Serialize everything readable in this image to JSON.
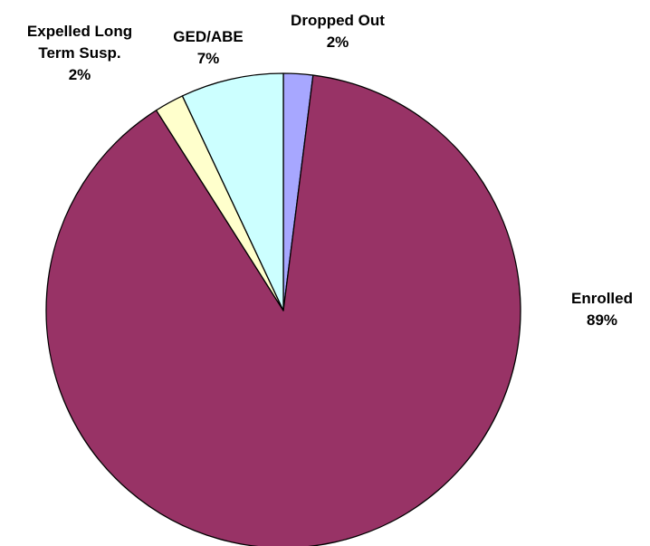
{
  "chart_data": {
    "type": "pie",
    "title": "",
    "start_angle_deg": 0,
    "direction": "clockwise",
    "slices": [
      {
        "name": "Dropped Out",
        "value": 2,
        "label_lines": [
          "Dropped Out"
        ],
        "percent_label": "2%",
        "color": "#A7A7FF"
      },
      {
        "name": "Enrolled",
        "value": 89,
        "label_lines": [
          "Enrolled"
        ],
        "percent_label": "89%",
        "color": "#983366"
      },
      {
        "name": "Expelled Long Term Susp.",
        "value": 2,
        "label_lines": [
          "Expelled Long",
          "Term Susp."
        ],
        "percent_label": "2%",
        "color": "#FFFFCC"
      },
      {
        "name": "GED/ABE",
        "value": 7,
        "label_lines": [
          "GED/ABE"
        ],
        "percent_label": "7%",
        "color": "#CCFFFF"
      }
    ],
    "legend": "none",
    "outline_color": "#000000"
  }
}
